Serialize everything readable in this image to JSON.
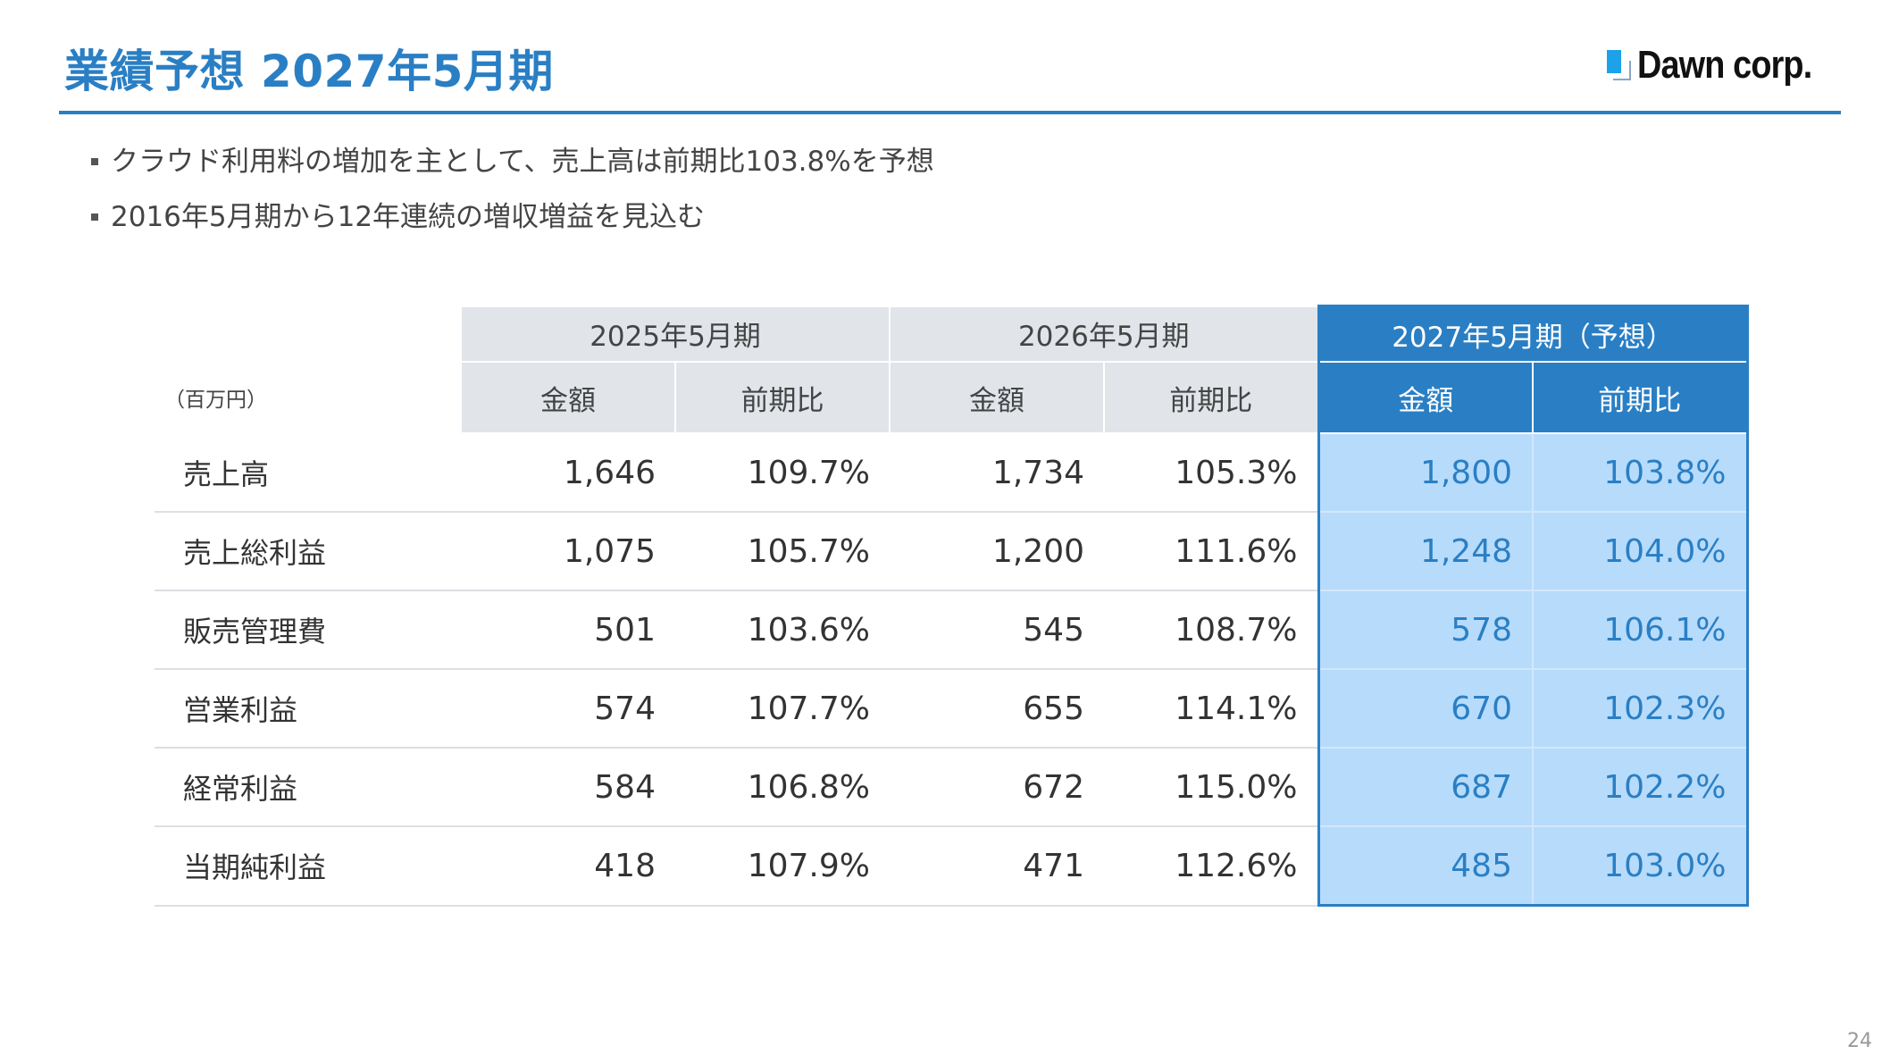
{
  "header": {
    "title": "業績予想 2027年5月期",
    "logo_text": "Dawn corp."
  },
  "bullets": [
    "クラウド利用料の増加を主として、売上高は前期比103.8%を予想",
    "2016年5月期から12年連続の増収増益を見込む"
  ],
  "table": {
    "unit": "（百万円）",
    "periods": [
      "2025年5月期",
      "2026年5月期",
      "2027年5月期（予想）"
    ],
    "subheaders": [
      "金額",
      "前期比",
      "金額",
      "前期比",
      "金額",
      "前期比"
    ],
    "rows": [
      {
        "label": "売上高",
        "cells": [
          "1,646",
          "109.7%",
          "1,734",
          "105.3%",
          "1,800",
          "103.8%"
        ]
      },
      {
        "label": "売上総利益",
        "cells": [
          "1,075",
          "105.7%",
          "1,200",
          "111.6%",
          "1,248",
          "104.0%"
        ]
      },
      {
        "label": "販売管理費",
        "cells": [
          "501",
          "103.6%",
          "545",
          "108.7%",
          "578",
          "106.1%"
        ]
      },
      {
        "label": "営業利益",
        "cells": [
          "574",
          "107.7%",
          "655",
          "114.1%",
          "670",
          "102.3%"
        ]
      },
      {
        "label": "経常利益",
        "cells": [
          "584",
          "106.8%",
          "672",
          "115.0%",
          "687",
          "102.2%"
        ]
      },
      {
        "label": "当期純利益",
        "cells": [
          "418",
          "107.9%",
          "471",
          "112.6%",
          "485",
          "103.0%"
        ]
      }
    ]
  },
  "page_number": "24",
  "colors": {
    "accent": "#2a7fc4",
    "forecast_bg": "#b7dbfb",
    "header_bg": "#e1e5ea"
  }
}
